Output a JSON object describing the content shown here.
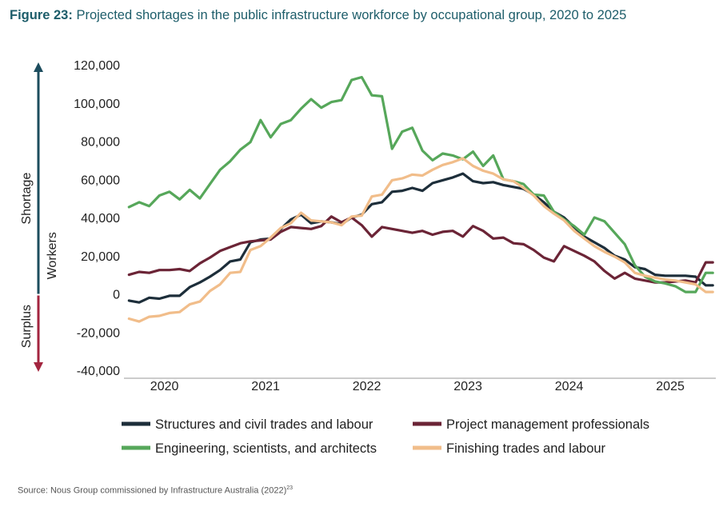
{
  "figure": {
    "label": "Figure 23:",
    "title": "Projected shortages in the public infrastructure workforce by occupational group, 2020 to 2025",
    "source": "Source: Nous Group commissioned by Infrastructure Australia (2022)",
    "source_ref": "23"
  },
  "chart_data": {
    "type": "line",
    "ylabel": "Workers",
    "direction_labels": {
      "up": "Shortage",
      "down": "Surplus"
    },
    "y_ticks": [
      "120,000",
      "100,000",
      "80,000",
      "60,000",
      "40,000",
      "20,000",
      "0",
      "-20,000",
      "-40,000"
    ],
    "ylim": [
      -40000,
      120000
    ],
    "x_ticks": [
      "2020",
      "2021",
      "2022",
      "2023",
      "2024",
      "2025"
    ],
    "xlim": [
      2019.6,
      2025.45
    ],
    "legend": "bottom",
    "grid": false,
    "x": [
      2019.65,
      2019.75,
      2019.85,
      2019.95,
      2020.05,
      2020.15,
      2020.25,
      2020.35,
      2020.45,
      2020.55,
      2020.65,
      2020.75,
      2020.85,
      2020.95,
      2021.05,
      2021.15,
      2021.25,
      2021.35,
      2021.45,
      2021.55,
      2021.65,
      2021.75,
      2021.85,
      2021.95,
      2022.05,
      2022.15,
      2022.25,
      2022.35,
      2022.45,
      2022.55,
      2022.65,
      2022.75,
      2022.85,
      2022.95,
      2023.05,
      2023.15,
      2023.25,
      2023.35,
      2023.45,
      2023.55,
      2023.65,
      2023.75,
      2023.85,
      2023.95,
      2024.05,
      2024.15,
      2024.25,
      2024.35,
      2024.45,
      2024.55,
      2024.65,
      2024.75,
      2024.85,
      2024.95,
      2025.05,
      2025.15,
      2025.25,
      2025.35,
      2025.42
    ],
    "series": [
      {
        "name": "Structures and civil trades and labour",
        "color": "#1d2e3a",
        "values": [
          -3500,
          -4500,
          -2000,
          -2500,
          -1000,
          -1000,
          3500,
          6000,
          9000,
          12500,
          17000,
          18000,
          27000,
          28500,
          29000,
          34000,
          39000,
          41500,
          37000,
          38000,
          37500,
          36500,
          40000,
          41500,
          47000,
          48000,
          53500,
          54000,
          55500,
          54000,
          58000,
          59500,
          61000,
          63000,
          59000,
          58000,
          58500,
          57000,
          56000,
          55000,
          52000,
          48000,
          43000,
          40000,
          35000,
          30000,
          27000,
          24000,
          20000,
          18000,
          14000,
          13000,
          10000,
          9500,
          9500,
          9500,
          9000,
          4500,
          4500
        ]
      },
      {
        "name": "Project management professionals",
        "color": "#6b2436",
        "values": [
          10000,
          11500,
          11000,
          12500,
          12500,
          13000,
          12000,
          16000,
          19000,
          22500,
          24500,
          26500,
          27500,
          28000,
          28500,
          32500,
          35000,
          34500,
          34000,
          35500,
          40500,
          37500,
          40000,
          36000,
          30000,
          35000,
          34000,
          33000,
          32000,
          33000,
          31000,
          32500,
          33000,
          30000,
          35500,
          33000,
          29000,
          29500,
          26500,
          26000,
          23000,
          19000,
          17000,
          25000,
          22500,
          20000,
          17000,
          12000,
          8000,
          11000,
          8000,
          7000,
          6000,
          6000,
          6500,
          7000,
          6000,
          16500,
          16500
        ]
      },
      {
        "name": "Engineering, scientists, and architects",
        "color": "#56a75a",
        "values": [
          45500,
          48000,
          46000,
          51500,
          53500,
          49500,
          54500,
          50000,
          57500,
          65000,
          69500,
          75500,
          79500,
          91000,
          82000,
          89000,
          91000,
          97000,
          102000,
          97500,
          100500,
          101500,
          112000,
          113500,
          104000,
          103500,
          76000,
          85000,
          87000,
          75000,
          70000,
          73500,
          72500,
          70500,
          74500,
          67000,
          72500,
          60000,
          59000,
          57500,
          52000,
          51500,
          43000,
          39000,
          35500,
          31000,
          40000,
          38000,
          32000,
          26000,
          15000,
          9000,
          6500,
          5500,
          4000,
          1000,
          1000,
          11000,
          11000
        ]
      },
      {
        "name": "Finishing trades and labour",
        "color": "#f1bd8a",
        "values": [
          -13000,
          -14500,
          -12000,
          -11500,
          -10000,
          -9500,
          -5500,
          -4000,
          1500,
          5000,
          11000,
          11500,
          23000,
          25000,
          29500,
          34500,
          37000,
          42500,
          38500,
          38000,
          37500,
          36000,
          40500,
          41000,
          51000,
          52000,
          59500,
          60500,
          62500,
          62000,
          65000,
          67500,
          69000,
          71000,
          67000,
          64500,
          63000,
          60000,
          59000,
          55500,
          51500,
          46000,
          42000,
          38500,
          33000,
          29000,
          25000,
          22000,
          19500,
          16500,
          11000,
          9500,
          8500,
          7500,
          7000,
          6000,
          5000,
          1000,
          1000
        ]
      }
    ]
  }
}
